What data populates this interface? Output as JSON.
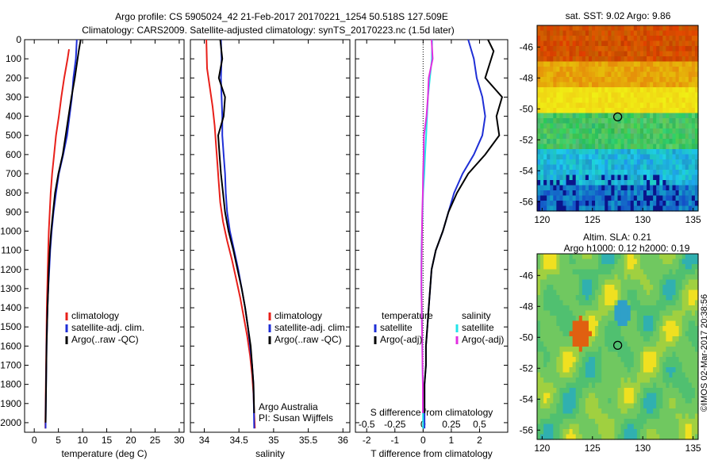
{
  "header": {
    "title_line1": "Argo profile: CS 5905024_42 21-Feb-2017 20170221_1254 50.518S 127.509E",
    "title_line2": "Climatology: CARS2009. Satellite-adjusted climatology: synTS_20170223.nc (1.5d later)"
  },
  "colors": {
    "climatology": "#e8201a",
    "satellite": "#1f2fd6",
    "argo": "#000000",
    "satellite_salinity": "#22e4e8",
    "argo_salinity": "#e22ee0"
  },
  "chart_data": [
    {
      "type": "line",
      "name": "temperature-panel",
      "xlabel": "temperature (deg C)",
      "ylabel": "",
      "xlim": [
        -2,
        31
      ],
      "ylim": [
        2050,
        0
      ],
      "xticks": [
        0,
        5,
        10,
        15,
        20,
        25,
        30
      ],
      "yticks": [
        0,
        100,
        200,
        300,
        400,
        500,
        600,
        700,
        800,
        900,
        1000,
        1100,
        1200,
        1300,
        1400,
        1500,
        1600,
        1700,
        1800,
        1900,
        2000
      ],
      "legend": [
        "climatology",
        "satellite-adj. clim.",
        "Argo(..raw -QC)"
      ],
      "legend_placement": "lower-center",
      "series": [
        {
          "name": "climatology",
          "color": "#e8201a",
          "x": [
            7.2,
            6.9,
            6.2,
            5.6,
            5.1,
            4.5,
            4.1,
            3.7,
            3.4,
            3.2,
            3.0,
            2.9,
            2.8,
            2.7,
            2.6,
            2.55,
            2.5,
            2.45,
            2.4,
            2.35,
            2.3,
            2.3
          ],
          "y": [
            50,
            100,
            200,
            300,
            400,
            500,
            600,
            700,
            800,
            900,
            1000,
            1100,
            1200,
            1300,
            1400,
            1500,
            1600,
            1700,
            1800,
            1900,
            2000,
            2030
          ]
        },
        {
          "name": "satellite-adj. clim.",
          "color": "#1f2fd6",
          "x": [
            8.8,
            8.6,
            8.1,
            7.8,
            7.3,
            6.8,
            6.0,
            5.1,
            4.5,
            4.0,
            3.6,
            3.3,
            3.1,
            2.9,
            2.75,
            2.65,
            2.55,
            2.5,
            2.45,
            2.4,
            2.35,
            2.35
          ],
          "y": [
            0,
            100,
            200,
            300,
            400,
            500,
            600,
            700,
            800,
            900,
            1000,
            1100,
            1200,
            1300,
            1400,
            1500,
            1600,
            1700,
            1800,
            1900,
            2000,
            2030
          ]
        },
        {
          "name": "Argo(..raw -QC)",
          "color": "#000000",
          "x": [
            9.6,
            9.2,
            8.4,
            7.7,
            7.1,
            6.5,
            5.9,
            5.0,
            4.3,
            3.9,
            3.5,
            3.2,
            3.0,
            2.9,
            2.75,
            2.65,
            2.55,
            2.5,
            2.45,
            2.4,
            2.35
          ],
          "y": [
            0,
            60,
            200,
            300,
            400,
            500,
            600,
            700,
            800,
            900,
            1000,
            1100,
            1200,
            1300,
            1400,
            1500,
            1600,
            1700,
            1800,
            1900,
            2000
          ]
        }
      ]
    },
    {
      "type": "line",
      "name": "salinity-panel",
      "xlabel": "salinity",
      "ylabel": "",
      "xlim": [
        33.8,
        36.1
      ],
      "ylim": [
        2050,
        0
      ],
      "xticks": [
        34,
        34.5,
        35,
        35.5,
        36
      ],
      "legend": [
        "climatology",
        "satellite-adj. clim.",
        "Argo(..raw -QC)"
      ],
      "legend_placement": "lower-right",
      "annotations": [
        "Argo Australia",
        "PI: Susan Wijffels"
      ],
      "series": [
        {
          "name": "climatology",
          "color": "#e8201a",
          "x": [
            34.03,
            34.04,
            34.08,
            34.12,
            34.15,
            34.17,
            34.19,
            34.21,
            34.23,
            34.27,
            34.33,
            34.4,
            34.46,
            34.52,
            34.57,
            34.62,
            34.66,
            34.69,
            34.71,
            34.72,
            34.73
          ],
          "y": [
            0,
            150,
            250,
            350,
            450,
            550,
            650,
            750,
            850,
            950,
            1050,
            1150,
            1250,
            1350,
            1450,
            1550,
            1650,
            1750,
            1850,
            1950,
            2030
          ]
        },
        {
          "name": "satellite-adj. clim.",
          "color": "#1f2fd6",
          "x": [
            34.24,
            34.25,
            34.24,
            34.25,
            34.26,
            34.26,
            34.28,
            34.3,
            34.31,
            34.33,
            34.37,
            34.43,
            34.49,
            34.54,
            34.59,
            34.63,
            34.66,
            34.69,
            34.71,
            34.72
          ],
          "y": [
            0,
            100,
            200,
            300,
            400,
            500,
            600,
            700,
            800,
            900,
            1000,
            1100,
            1200,
            1300,
            1400,
            1500,
            1600,
            1700,
            1800,
            2030
          ]
        },
        {
          "name": "Argo(..raw -QC)",
          "color": "#000000",
          "x": [
            34.23,
            34.26,
            34.21,
            34.3,
            34.28,
            34.2,
            34.22,
            34.24,
            34.27,
            34.3,
            34.35,
            34.42,
            34.48,
            34.54,
            34.59,
            34.63,
            34.67,
            34.69,
            34.71,
            34.72
          ],
          "y": [
            0,
            100,
            200,
            300,
            400,
            500,
            600,
            700,
            800,
            900,
            1000,
            1100,
            1200,
            1300,
            1400,
            1500,
            1600,
            1700,
            1800,
            1950
          ]
        }
      ]
    },
    {
      "type": "line",
      "name": "difference-panel",
      "xlabel": "T difference from climatology",
      "top_label": "S difference from climatology",
      "xlim": [
        -2.4,
        3.0
      ],
      "ylim": [
        2050,
        0
      ],
      "xticks": [
        -2,
        -1,
        0,
        1,
        2
      ],
      "s_ticks": [
        -0.5,
        -0.25,
        0,
        0.25,
        0.5
      ],
      "s_tick_labels": [
        "-0.5",
        "-0.25",
        "0",
        "0.25",
        "0.5"
      ],
      "legend": [
        "temperature",
        "satellite",
        "Argo(-adj)",
        "salinity",
        "satellite",
        "Argo(-adj)"
      ],
      "legend_placement": "lower-center",
      "series": [
        {
          "name": "temperature satellite",
          "color": "#1f2fd6",
          "x": [
            1.6,
            1.8,
            1.9,
            2.1,
            2.2,
            2.1,
            1.8,
            1.4,
            1.1,
            0.9,
            0.7,
            0.45,
            0.3,
            0.25,
            0.2,
            0.15,
            0.1,
            0.1,
            0.05,
            0.05,
            0.05
          ],
          "y": [
            0,
            100,
            200,
            300,
            400,
            500,
            600,
            700,
            800,
            900,
            1000,
            1100,
            1200,
            1300,
            1400,
            1500,
            1600,
            1700,
            1800,
            1900,
            2030
          ]
        },
        {
          "name": "temperature Argo(-adj)",
          "color": "#000000",
          "x": [
            2.3,
            2.5,
            2.2,
            2.8,
            2.6,
            2.7,
            2.2,
            1.6,
            1.2,
            0.9,
            0.7,
            0.45,
            0.3,
            0.25,
            0.2,
            0.15,
            0.1,
            0.1,
            0.05,
            0.05
          ],
          "y": [
            0,
            60,
            200,
            300,
            400,
            500,
            600,
            700,
            800,
            900,
            1000,
            1100,
            1200,
            1300,
            1400,
            1500,
            1600,
            1700,
            1800,
            1950
          ]
        },
        {
          "name": "salinity satellite",
          "color": "#22e4e8",
          "x": [
            0.32,
            0.31,
            0.24,
            0.17,
            0.14,
            0.11,
            0.07,
            0.04,
            0.0,
            -0.02,
            -0.04,
            -0.06,
            -0.06,
            -0.06,
            -0.05,
            -0.04,
            -0.03,
            -0.02,
            -0.01,
            0.0
          ],
          "y": [
            0,
            100,
            200,
            300,
            400,
            500,
            600,
            700,
            800,
            900,
            1000,
            1100,
            1200,
            1300,
            1400,
            1500,
            1600,
            1700,
            1800,
            2030
          ]
        },
        {
          "name": "salinity Argo(-adj)",
          "color": "#e22ee0",
          "x": [
            0.3,
            0.34,
            0.2,
            0.17,
            0.12,
            0.03,
            0.02,
            0.0,
            -0.01,
            -0.03,
            -0.04,
            -0.05,
            -0.06,
            -0.06,
            -0.05,
            -0.04,
            -0.03,
            -0.02,
            -0.01,
            -0.01
          ],
          "y": [
            0,
            100,
            200,
            300,
            400,
            500,
            600,
            700,
            800,
            900,
            1000,
            1100,
            1200,
            1300,
            1400,
            1500,
            1600,
            1700,
            1800,
            1950
          ]
        }
      ]
    },
    {
      "type": "heatmap",
      "name": "sst-map",
      "title": "sat. SST: 9.02  Argo: 9.86",
      "xlim": [
        119.5,
        135.5
      ],
      "ylim": [
        -56.6,
        -44.6
      ],
      "xticks": [
        120,
        125,
        130,
        135
      ],
      "yticks": [
        -46,
        -48,
        -50,
        -52,
        -54,
        -56
      ],
      "marker": {
        "lon": 127.509,
        "lat": -50.518
      }
    },
    {
      "type": "heatmap",
      "name": "sla-map",
      "title_line1": "Altim. SLA: 0.21",
      "title_line2": "Argo h1000: 0.12 h2000: 0.19",
      "xlim": [
        119.5,
        135.5
      ],
      "ylim": [
        -56.6,
        -44.6
      ],
      "xticks": [
        120,
        125,
        130,
        135
      ],
      "yticks": [
        -46,
        -48,
        -50,
        -52,
        -54,
        -56
      ],
      "marker": {
        "lon": 127.509,
        "lat": -50.518
      },
      "credit": "©IMOS 02-Mar-2017 20:38:56"
    }
  ]
}
